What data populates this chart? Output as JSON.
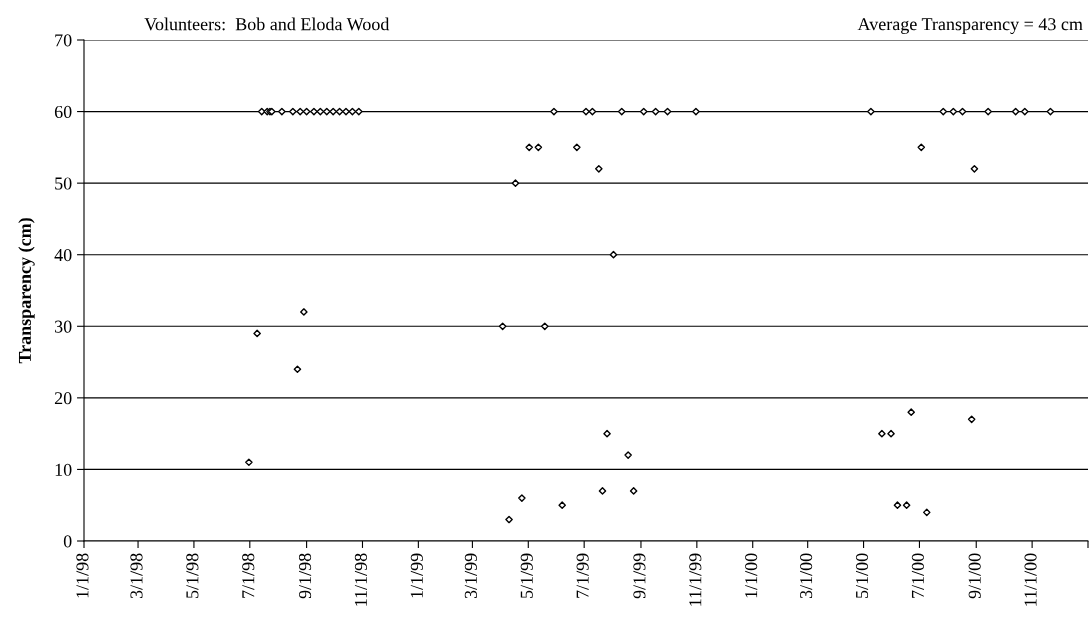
{
  "chart_data": {
    "type": "scatter",
    "ylabel": "Transparency (cm)",
    "annotations": [
      "Volunteers:  Bob and Eloda Wood",
      "Average Transparency = 43 cm"
    ],
    "series": [
      {
        "color": "#000000",
        "x": [
          "1998-06-30",
          "1998-07-09",
          "1998-07-14",
          "1998-07-20",
          "1998-07-23",
          "1998-07-25",
          "1998-08-05",
          "1998-08-17",
          "1998-08-22",
          "1998-08-25",
          "1998-08-29",
          "1998-09-01",
          "1998-09-09",
          "1998-09-16",
          "1998-09-23",
          "1998-09-30",
          "1998-10-07",
          "1998-10-14",
          "1998-10-21",
          "1998-10-28",
          "1999-04-03",
          "1999-04-10",
          "1999-04-17",
          "1999-04-24",
          "1999-05-02",
          "1999-05-12",
          "1999-05-19",
          "1999-05-29",
          "1999-06-07",
          "1999-06-23",
          "1999-07-03",
          "1999-07-10",
          "1999-07-17",
          "1999-07-21",
          "1999-07-26",
          "1999-08-02",
          "1999-08-11",
          "1999-08-18",
          "1999-08-24",
          "1999-09-04",
          "1999-09-17",
          "1999-09-30",
          "1999-10-31",
          "2000-05-09",
          "2000-05-21",
          "2000-05-31",
          "2000-06-07",
          "2000-06-17",
          "2000-06-22",
          "2000-07-03",
          "2000-07-09",
          "2000-07-27",
          "2000-08-07",
          "2000-08-17",
          "2000-08-27",
          "2000-08-30",
          "2000-09-14",
          "2000-10-14",
          "2000-10-24",
          "2000-11-21"
        ],
        "values": [
          11,
          29,
          60,
          60,
          60,
          60,
          60,
          60,
          24,
          60,
          32,
          60,
          60,
          60,
          60,
          60,
          60,
          60,
          60,
          60,
          30,
          3,
          50,
          6,
          55,
          55,
          30,
          60,
          5,
          55,
          60,
          60,
          52,
          7,
          15,
          40,
          60,
          12,
          7,
          60,
          60,
          60,
          60,
          60,
          15,
          15,
          5,
          5,
          18,
          55,
          4,
          60,
          60,
          60,
          17,
          52,
          60,
          60,
          60,
          60
        ]
      }
    ],
    "marker": "diamond",
    "xlim": [
      "1998-01-01",
      "2001-01-01"
    ],
    "xticks": [
      {
        "value": "1998-01-01",
        "label": "1/1/98"
      },
      {
        "value": "1998-03-01",
        "label": "3/1/98"
      },
      {
        "value": "1998-05-01",
        "label": "5/1/98"
      },
      {
        "value": "1998-07-01",
        "label": "7/1/98"
      },
      {
        "value": "1998-09-01",
        "label": "9/1/98"
      },
      {
        "value": "1998-11-01",
        "label": "11/1/98"
      },
      {
        "value": "1999-01-01",
        "label": "1/1/99"
      },
      {
        "value": "1999-03-01",
        "label": "3/1/99"
      },
      {
        "value": "1999-05-01",
        "label": "5/1/99"
      },
      {
        "value": "1999-07-01",
        "label": "7/1/99"
      },
      {
        "value": "1999-09-01",
        "label": "9/1/99"
      },
      {
        "value": "1999-11-01",
        "label": "11/1/99"
      },
      {
        "value": "2000-01-01",
        "label": "1/1/00"
      },
      {
        "value": "2000-03-01",
        "label": "3/1/00"
      },
      {
        "value": "2000-05-01",
        "label": "5/1/00"
      },
      {
        "value": "2000-07-01",
        "label": "7/1/00"
      },
      {
        "value": "2000-09-01",
        "label": "9/1/00"
      },
      {
        "value": "2000-11-01",
        "label": "11/1/00"
      },
      {
        "value": "2001-01-01",
        "label": null
      }
    ],
    "ylim": [
      0,
      70
    ],
    "yticks": [
      0,
      10,
      20,
      30,
      40,
      50,
      60,
      70
    ],
    "grid": "y",
    "legend": false
  }
}
